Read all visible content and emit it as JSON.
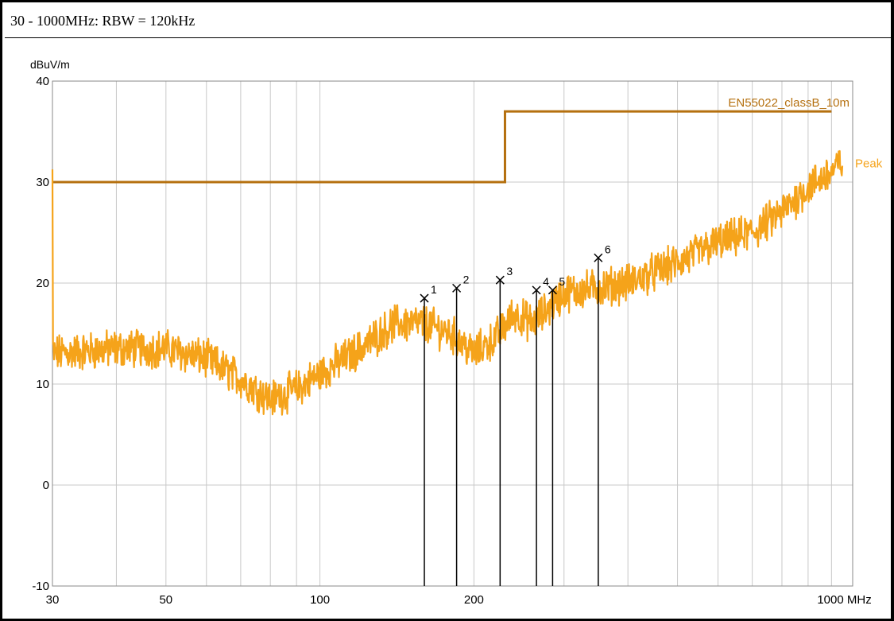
{
  "header": {
    "title": "30 - 1000MHz: RBW = 120kHz"
  },
  "colors": {
    "limit": "#b5700f",
    "peak": "#f5a31a",
    "grid": "#c8c8c8",
    "marker": "#000000"
  },
  "chart_data": {
    "type": "line",
    "title": "30 - 1000MHz: RBW = 120kHz",
    "ylabel": "dBuV/m",
    "xlabel": "",
    "x_unit": "MHz",
    "x_scale": "log",
    "xlim": [
      30,
      1100
    ],
    "ylim": [
      -10,
      40
    ],
    "grid": true,
    "x_ticks": [
      {
        "value": 30,
        "label": "30"
      },
      {
        "value": 50,
        "label": "50"
      },
      {
        "value": 100,
        "label": "100"
      },
      {
        "value": 200,
        "label": "200"
      },
      {
        "value": 1000,
        "label": "1000 MHz"
      }
    ],
    "y_ticks": [
      {
        "value": 40,
        "label": "40"
      },
      {
        "value": 30,
        "label": "30"
      },
      {
        "value": 20,
        "label": "20"
      },
      {
        "value": 10,
        "label": "10"
      },
      {
        "value": 0,
        "label": "0"
      },
      {
        "value": -10,
        "label": "-10"
      }
    ],
    "series": [
      {
        "name": "EN55022_classB_10m",
        "kind": "limit",
        "points": [
          [
            30,
            30
          ],
          [
            230,
            30
          ],
          [
            230,
            37
          ],
          [
            1000,
            37
          ]
        ]
      },
      {
        "name": "Peak",
        "kind": "measurement",
        "points": [
          [
            30,
            13
          ],
          [
            40,
            13.5
          ],
          [
            50,
            13.5
          ],
          [
            60,
            12.5
          ],
          [
            70,
            10.5
          ],
          [
            80,
            8.5
          ],
          [
            90,
            9.5
          ],
          [
            100,
            11
          ],
          [
            120,
            13.5
          ],
          [
            140,
            16
          ],
          [
            160,
            16
          ],
          [
            180,
            15
          ],
          [
            200,
            13
          ],
          [
            220,
            14.5
          ],
          [
            240,
            17
          ],
          [
            260,
            16
          ],
          [
            280,
            17.5
          ],
          [
            300,
            19
          ],
          [
            400,
            20
          ],
          [
            500,
            22
          ],
          [
            600,
            24
          ],
          [
            700,
            25
          ],
          [
            800,
            27
          ],
          [
            900,
            29.5
          ],
          [
            1000,
            31
          ]
        ]
      }
    ],
    "markers": [
      {
        "label": "1",
        "x": 160,
        "y": 18.5
      },
      {
        "label": "2",
        "x": 185,
        "y": 19.5
      },
      {
        "label": "3",
        "x": 225,
        "y": 20.3
      },
      {
        "label": "4",
        "x": 265,
        "y": 19.3
      },
      {
        "label": "5",
        "x": 285,
        "y": 19.3
      },
      {
        "label": "6",
        "x": 350,
        "y": 22.5
      }
    ]
  }
}
